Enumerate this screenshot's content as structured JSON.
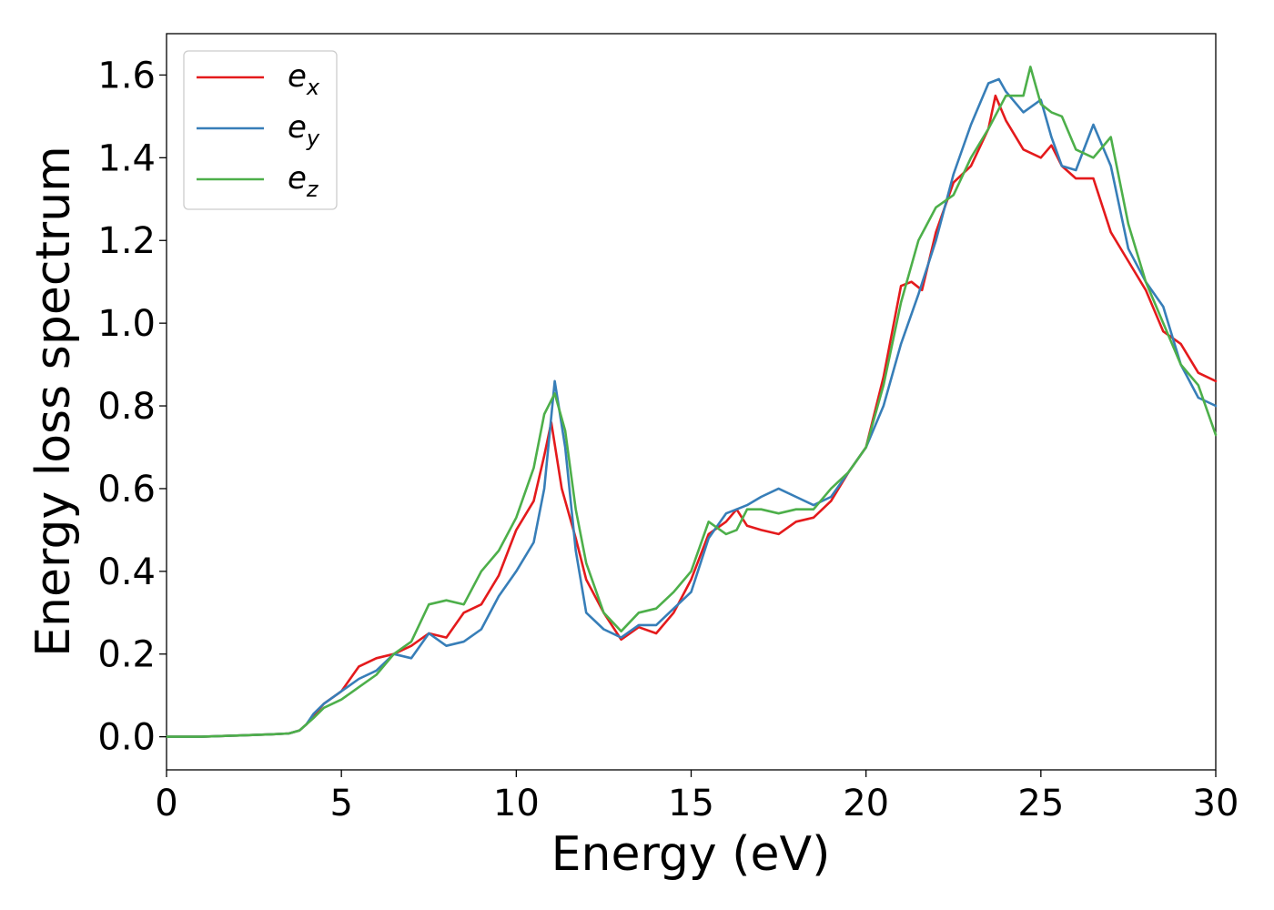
{
  "chart_data": {
    "type": "line",
    "title": "",
    "xlabel": "Energy (eV)",
    "ylabel": "Energy loss spectrum",
    "xlim": [
      0,
      30
    ],
    "ylim": [
      -0.08,
      1.7
    ],
    "xticks": [
      "0",
      "5",
      "10",
      "15",
      "20",
      "25",
      "30"
    ],
    "yticks": [
      "0.0",
      "0.2",
      "0.4",
      "0.6",
      "0.8",
      "1.0",
      "1.2",
      "1.4",
      "1.6"
    ],
    "grid": false,
    "legend_position": "top-left",
    "series": [
      {
        "name": "e_x",
        "legend_base": "e",
        "legend_sub": "x",
        "color": "#e41a1c",
        "x": [
          0,
          1,
          2,
          3,
          3.5,
          3.8,
          4.0,
          4.2,
          4.5,
          5,
          5.5,
          6,
          6.5,
          7,
          7.5,
          8,
          8.5,
          9,
          9.5,
          10,
          10.5,
          10.8,
          11,
          11.3,
          11.7,
          12,
          12.5,
          13,
          13.5,
          14,
          14.5,
          15,
          15.5,
          16,
          16.3,
          16.6,
          17,
          17.5,
          18,
          18.5,
          19,
          19.5,
          20,
          20.5,
          21,
          21.3,
          21.6,
          22,
          22.5,
          23,
          23.5,
          23.7,
          24,
          24.5,
          25,
          25.3,
          25.6,
          26,
          26.5,
          27,
          27.5,
          28,
          28.5,
          29,
          29.5,
          30
        ],
        "y": [
          0.0,
          0.0,
          0.003,
          0.006,
          0.008,
          0.015,
          0.03,
          0.05,
          0.08,
          0.11,
          0.17,
          0.19,
          0.2,
          0.22,
          0.25,
          0.24,
          0.3,
          0.32,
          0.39,
          0.5,
          0.57,
          0.68,
          0.76,
          0.6,
          0.48,
          0.38,
          0.3,
          0.235,
          0.265,
          0.25,
          0.3,
          0.38,
          0.49,
          0.52,
          0.55,
          0.51,
          0.5,
          0.49,
          0.52,
          0.53,
          0.57,
          0.64,
          0.7,
          0.87,
          1.09,
          1.1,
          1.08,
          1.22,
          1.34,
          1.38,
          1.47,
          1.55,
          1.49,
          1.42,
          1.4,
          1.43,
          1.38,
          1.35,
          1.35,
          1.22,
          1.15,
          1.08,
          0.98,
          0.95,
          0.88,
          0.86
        ]
      },
      {
        "name": "e_y",
        "legend_base": "e",
        "legend_sub": "y",
        "color": "#377eb8",
        "x": [
          0,
          1,
          2,
          3,
          3.5,
          3.8,
          4.0,
          4.2,
          4.5,
          5,
          5.5,
          6,
          6.5,
          7,
          7.5,
          8,
          8.5,
          9,
          9.5,
          10,
          10.5,
          10.8,
          11.1,
          11.4,
          11.7,
          12,
          12.5,
          13,
          13.5,
          14,
          14.5,
          15,
          15.5,
          16,
          16.3,
          16.6,
          17,
          17.5,
          18,
          18.5,
          19,
          19.5,
          20,
          20.5,
          21,
          21.5,
          22,
          22.5,
          23,
          23.5,
          23.8,
          24,
          24.5,
          25,
          25.3,
          25.6,
          26,
          26.5,
          27,
          27.5,
          28,
          28.5,
          29,
          29.5,
          30
        ],
        "y": [
          0.0,
          0.0,
          0.003,
          0.006,
          0.008,
          0.015,
          0.03,
          0.055,
          0.08,
          0.11,
          0.14,
          0.16,
          0.2,
          0.19,
          0.25,
          0.22,
          0.23,
          0.26,
          0.34,
          0.4,
          0.47,
          0.6,
          0.86,
          0.7,
          0.45,
          0.3,
          0.26,
          0.24,
          0.27,
          0.27,
          0.31,
          0.35,
          0.48,
          0.54,
          0.55,
          0.56,
          0.58,
          0.6,
          0.58,
          0.56,
          0.58,
          0.64,
          0.7,
          0.8,
          0.95,
          1.07,
          1.2,
          1.36,
          1.48,
          1.58,
          1.59,
          1.56,
          1.51,
          1.54,
          1.45,
          1.38,
          1.37,
          1.48,
          1.38,
          1.18,
          1.1,
          1.04,
          0.9,
          0.82,
          0.8
        ]
      },
      {
        "name": "e_z",
        "legend_base": "e",
        "legend_sub": "z",
        "color": "#4daf4a",
        "x": [
          0,
          1,
          2,
          3,
          3.5,
          3.8,
          4.0,
          4.2,
          4.5,
          5,
          5.5,
          6,
          6.5,
          7,
          7.5,
          8,
          8.5,
          9,
          9.5,
          10,
          10.5,
          10.8,
          11.1,
          11.4,
          11.7,
          12,
          12.5,
          13,
          13.5,
          14,
          14.5,
          15,
          15.5,
          16,
          16.3,
          16.6,
          17,
          17.5,
          18,
          18.5,
          19,
          19.5,
          20,
          20.5,
          21,
          21.5,
          22,
          22.5,
          23,
          23.5,
          24,
          24.5,
          24.7,
          25,
          25.3,
          25.6,
          26,
          26.5,
          27,
          27.5,
          28,
          28.5,
          29,
          29.5,
          30
        ],
        "y": [
          0.0,
          0.0,
          0.003,
          0.006,
          0.008,
          0.015,
          0.03,
          0.045,
          0.07,
          0.09,
          0.12,
          0.15,
          0.2,
          0.23,
          0.32,
          0.33,
          0.32,
          0.4,
          0.45,
          0.53,
          0.65,
          0.78,
          0.83,
          0.74,
          0.55,
          0.42,
          0.3,
          0.255,
          0.3,
          0.31,
          0.35,
          0.4,
          0.52,
          0.49,
          0.5,
          0.55,
          0.55,
          0.54,
          0.55,
          0.55,
          0.6,
          0.64,
          0.7,
          0.85,
          1.05,
          1.2,
          1.28,
          1.31,
          1.4,
          1.47,
          1.55,
          1.55,
          1.62,
          1.53,
          1.51,
          1.5,
          1.42,
          1.4,
          1.45,
          1.24,
          1.1,
          1.0,
          0.9,
          0.85,
          0.73
        ]
      }
    ]
  }
}
